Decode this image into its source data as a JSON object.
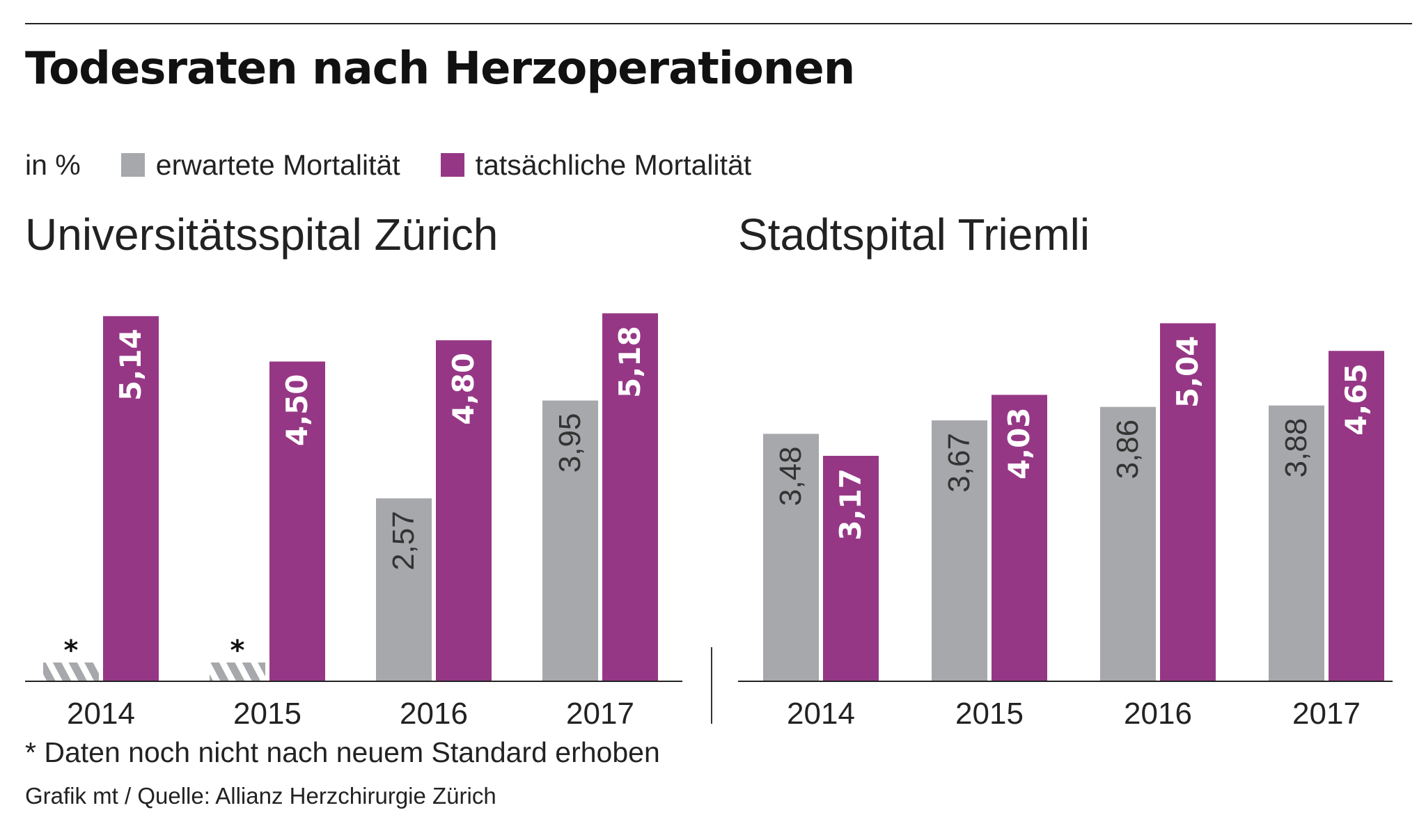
{
  "title": "Todesraten nach Herzoperationen",
  "legend": {
    "unit": "in %",
    "items": [
      {
        "label": "erwartete Mortalität",
        "color": "#a7a8ab"
      },
      {
        "label": "tatsächliche Mortalität",
        "color": "#963786"
      }
    ]
  },
  "chart_data": [
    {
      "type": "bar",
      "title": "Universitätsspital Zürich",
      "categories": [
        "2014",
        "2015",
        "2016",
        "2017"
      ],
      "series": [
        {
          "name": "erwartete Mortalität",
          "color": "#a7a8ab",
          "values": [
            null,
            null,
            2.57,
            3.95
          ],
          "labels": [
            "",
            "",
            "2,57",
            "3,95"
          ],
          "placeholder_marks": [
            "*",
            "*",
            "",
            ""
          ]
        },
        {
          "name": "tatsächliche Mortalität",
          "color": "#963786",
          "values": [
            5.14,
            4.5,
            4.8,
            5.18
          ],
          "labels": [
            "5,14",
            "4,50",
            "4,80",
            "5,18"
          ]
        }
      ],
      "ylim": [
        0,
        5.3
      ],
      "grid": false,
      "xlabel": "",
      "ylabel": ""
    },
    {
      "type": "bar",
      "title": "Stadtspital Triemli",
      "categories": [
        "2014",
        "2015",
        "2016",
        "2017"
      ],
      "series": [
        {
          "name": "erwartete Mortalität",
          "color": "#a7a8ab",
          "values": [
            3.48,
            3.67,
            3.86,
            3.88
          ],
          "labels": [
            "3,48",
            "3,67",
            "3,86",
            "3,88"
          ]
        },
        {
          "name": "tatsächliche Mortalität",
          "color": "#963786",
          "values": [
            3.17,
            4.03,
            5.04,
            4.65
          ],
          "labels": [
            "3,17",
            "4,03",
            "5,04",
            "4,65"
          ]
        }
      ],
      "ylim": [
        0,
        5.3
      ],
      "grid": false,
      "xlabel": "",
      "ylabel": ""
    }
  ],
  "footnote": "* Daten noch nicht nach neuem Standard erhoben",
  "source": "Grafik mt / Quelle: Allianz Herzchirurgie Zürich"
}
